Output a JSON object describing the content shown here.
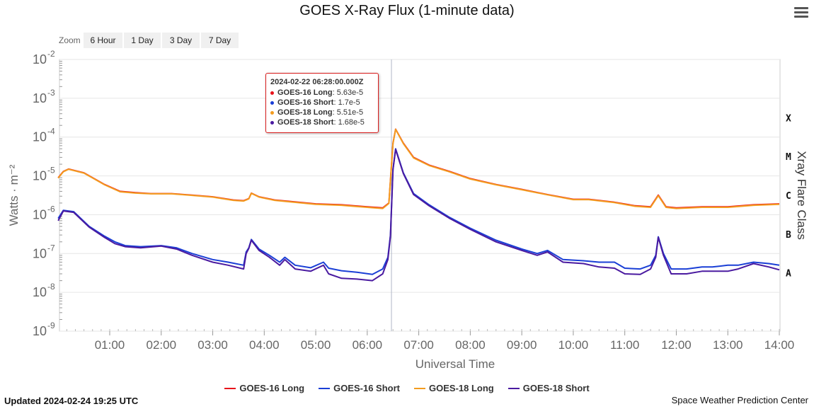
{
  "header": {
    "title": "GOES X-Ray Flux (1-minute data)"
  },
  "zoom": {
    "label": "Zoom",
    "buttons": [
      "6 Hour",
      "1 Day",
      "3 Day",
      "7 Day"
    ]
  },
  "tooltip": {
    "time": "2024-02-22 06:28:00.000Z",
    "rows": [
      {
        "name": "GOES-16 Long",
        "value": "5.63e-5",
        "color": "#e8141b"
      },
      {
        "name": "GOES-16 Short",
        "value": "1.7e-5",
        "color": "#1a3fd6"
      },
      {
        "name": "GOES-18 Long",
        "value": "5.51e-5",
        "color": "#f39c1f"
      },
      {
        "name": "GOES-18 Short",
        "value": "1.68e-5",
        "color": "#4a1aa0"
      }
    ]
  },
  "footer": {
    "updated": "Updated 2024-02-24 19:25 UTC",
    "credit": "Space Weather Prediction Center"
  },
  "chart_data": {
    "type": "line",
    "title": "GOES X-Ray Flux (1-minute data)",
    "xlabel": "Universal Time",
    "ylabel": "Watts · m⁻²",
    "y2label": "Xray Flare Class",
    "yscale": "log",
    "ylim": [
      1e-09,
      0.01
    ],
    "xlim": [
      0.0,
      14.0
    ],
    "x_ticks": [
      "01:00",
      "02:00",
      "03:00",
      "04:00",
      "05:00",
      "06:00",
      "07:00",
      "08:00",
      "09:00",
      "10:00",
      "11:00",
      "12:00",
      "13:00",
      "14:00"
    ],
    "y_tick_exponents": [
      -2,
      -3,
      -4,
      -5,
      -6,
      -7,
      -8,
      -9
    ],
    "flare_classes": [
      {
        "label": "X",
        "value": 0.0001
      },
      {
        "label": "M",
        "value": 1e-05
      },
      {
        "label": "C",
        "value": 1e-06
      },
      {
        "label": "B",
        "value": 1e-07
      },
      {
        "label": "A",
        "value": 1e-08
      }
    ],
    "crosshair_hour": 6.47,
    "grid": true,
    "legend_position": "bottom",
    "series": [
      {
        "name": "GOES-16 Long",
        "color": "#e8141b",
        "x": [
          0.0,
          0.1,
          0.2,
          0.5,
          0.9,
          1.2,
          1.5,
          1.8,
          2.2,
          2.6,
          3.0,
          3.4,
          3.6,
          3.7,
          3.75,
          3.9,
          4.2,
          4.5,
          5.0,
          5.5,
          6.0,
          6.3,
          6.42,
          6.5,
          6.55,
          6.7,
          6.9,
          7.2,
          7.6,
          8.0,
          8.5,
          9.0,
          9.5,
          10.0,
          10.3,
          10.8,
          11.2,
          11.5,
          11.65,
          11.8,
          12.0,
          12.5,
          13.0,
          13.5,
          14.0
        ],
        "y": [
          9e-06,
          1.3e-05,
          1.5e-05,
          1.2e-05,
          6e-06,
          4e-06,
          3.7e-06,
          3.5e-06,
          3.5e-06,
          3.2e-06,
          2.9e-06,
          2.4e-06,
          2.3e-06,
          2.6e-06,
          3.6e-06,
          2.9e-06,
          2.4e-06,
          2.2e-06,
          1.9e-06,
          1.8e-06,
          1.6e-06,
          1.5e-06,
          2e-06,
          7e-05,
          0.00016,
          7e-05,
          3e-05,
          1.9e-05,
          1.3e-05,
          8.5e-06,
          6e-06,
          4.5e-06,
          3.3e-06,
          2.5e-06,
          2.5e-06,
          2.1e-06,
          1.7e-06,
          1.6e-06,
          3.2e-06,
          1.6e-06,
          1.5e-06,
          1.6e-06,
          1.6e-06,
          1.8e-06,
          1.9e-06
        ]
      },
      {
        "name": "GOES-16 Short",
        "color": "#1a3fd6",
        "x": [
          0.0,
          0.1,
          0.3,
          0.6,
          0.9,
          1.1,
          1.3,
          1.6,
          2.0,
          2.3,
          2.6,
          3.0,
          3.3,
          3.6,
          3.65,
          3.7,
          3.75,
          3.9,
          4.1,
          4.3,
          4.4,
          4.6,
          4.9,
          5.15,
          5.25,
          5.5,
          5.8,
          6.1,
          6.3,
          6.4,
          6.45,
          6.5,
          6.55,
          6.7,
          6.9,
          7.2,
          7.6,
          8.0,
          8.5,
          9.0,
          9.3,
          9.5,
          9.8,
          10.2,
          10.5,
          10.8,
          11.0,
          11.3,
          11.5,
          11.6,
          11.65,
          11.75,
          11.9,
          12.2,
          12.5,
          12.7,
          13.0,
          13.2,
          13.5,
          13.8,
          14.0
        ],
        "y": [
          8e-07,
          1.3e-06,
          1.2e-06,
          5e-07,
          2.8e-07,
          2e-07,
          1.6e-07,
          1.5e-07,
          1.6e-07,
          1.4e-07,
          1e-07,
          7e-08,
          6e-08,
          5e-08,
          1.1e-07,
          1.4e-07,
          2.3e-07,
          1.3e-07,
          9e-08,
          6e-08,
          8e-08,
          5e-08,
          4.3e-08,
          6e-08,
          4.2e-08,
          3.6e-08,
          3.3e-08,
          2.9e-08,
          4e-08,
          8e-08,
          3e-07,
          1.5e-05,
          5e-05,
          1.2e-05,
          3.5e-06,
          1.8e-06,
          8.5e-07,
          4.5e-07,
          2.2e-07,
          1.3e-07,
          1e-07,
          1.2e-07,
          7e-08,
          6.5e-08,
          6e-08,
          6e-08,
          4.2e-08,
          4e-08,
          5e-08,
          9e-08,
          2.7e-07,
          1e-07,
          4e-08,
          4e-08,
          4.5e-08,
          4.5e-08,
          5e-08,
          5e-08,
          6e-08,
          5.5e-08,
          5e-08
        ]
      },
      {
        "name": "GOES-18 Long",
        "color": "#f39c1f",
        "x": [
          0.0,
          0.1,
          0.2,
          0.5,
          0.9,
          1.2,
          1.5,
          1.8,
          2.2,
          2.6,
          3.0,
          3.4,
          3.6,
          3.7,
          3.75,
          3.9,
          4.2,
          4.5,
          5.0,
          5.5,
          6.0,
          6.3,
          6.42,
          6.5,
          6.55,
          6.7,
          6.9,
          7.2,
          7.6,
          8.0,
          8.5,
          9.0,
          9.5,
          10.0,
          10.3,
          10.8,
          11.2,
          11.5,
          11.65,
          11.8,
          12.0,
          12.5,
          13.0,
          13.5,
          14.0
        ],
        "y": [
          8.8e-06,
          1.28e-05,
          1.48e-05,
          1.18e-05,
          5.9e-06,
          3.9e-06,
          3.6e-06,
          3.45e-06,
          3.45e-06,
          3.15e-06,
          2.85e-06,
          2.35e-06,
          2.25e-06,
          2.55e-06,
          3.55e-06,
          2.85e-06,
          2.35e-06,
          2.15e-06,
          1.85e-06,
          1.75e-06,
          1.55e-06,
          1.45e-06,
          1.95e-06,
          6.8e-05,
          0.000158,
          6.8e-05,
          2.9e-05,
          1.85e-05,
          1.27e-05,
          8.3e-06,
          5.9e-06,
          4.4e-06,
          3.25e-06,
          2.45e-06,
          2.45e-06,
          2.05e-06,
          1.65e-06,
          1.55e-06,
          3.1e-06,
          1.55e-06,
          1.45e-06,
          1.55e-06,
          1.55e-06,
          1.75e-06,
          1.85e-06
        ]
      },
      {
        "name": "GOES-18 Short",
        "color": "#4a1aa0",
        "x": [
          0.0,
          0.1,
          0.3,
          0.6,
          0.9,
          1.1,
          1.3,
          1.6,
          2.0,
          2.3,
          2.6,
          3.0,
          3.3,
          3.6,
          3.65,
          3.7,
          3.75,
          3.9,
          4.1,
          4.3,
          4.4,
          4.6,
          4.9,
          5.15,
          5.25,
          5.5,
          5.8,
          6.1,
          6.3,
          6.4,
          6.45,
          6.5,
          6.55,
          6.7,
          6.9,
          7.2,
          7.6,
          8.0,
          8.5,
          9.0,
          9.3,
          9.5,
          9.8,
          10.2,
          10.5,
          10.8,
          11.0,
          11.3,
          11.5,
          11.6,
          11.65,
          11.75,
          11.9,
          12.2,
          12.5,
          12.7,
          13.0,
          13.2,
          13.5,
          13.8,
          14.0
        ],
        "y": [
          7e-07,
          1.25e-06,
          1.15e-06,
          4.8e-07,
          2.6e-07,
          1.8e-07,
          1.5e-07,
          1.4e-07,
          1.55e-07,
          1.3e-07,
          9e-08,
          6e-08,
          5e-08,
          4e-08,
          1e-07,
          1.35e-07,
          2.2e-07,
          1.2e-07,
          8e-08,
          5e-08,
          7e-08,
          4e-08,
          3.5e-08,
          5e-08,
          3e-08,
          2.3e-08,
          2.2e-08,
          2e-08,
          3e-08,
          7e-08,
          2.8e-07,
          1.45e-05,
          4.8e-05,
          1.15e-05,
          3.3e-06,
          1.7e-06,
          8e-07,
          4.2e-07,
          2e-07,
          1.2e-07,
          9e-08,
          1.1e-07,
          6e-08,
          5.5e-08,
          4.5e-08,
          4.2e-08,
          3e-08,
          2.9e-08,
          4e-08,
          8e-08,
          2.6e-07,
          9e-08,
          3e-08,
          3e-08,
          3.5e-08,
          3.5e-08,
          3.5e-08,
          4e-08,
          5.5e-08,
          4.5e-08,
          3.8e-08
        ]
      }
    ]
  }
}
